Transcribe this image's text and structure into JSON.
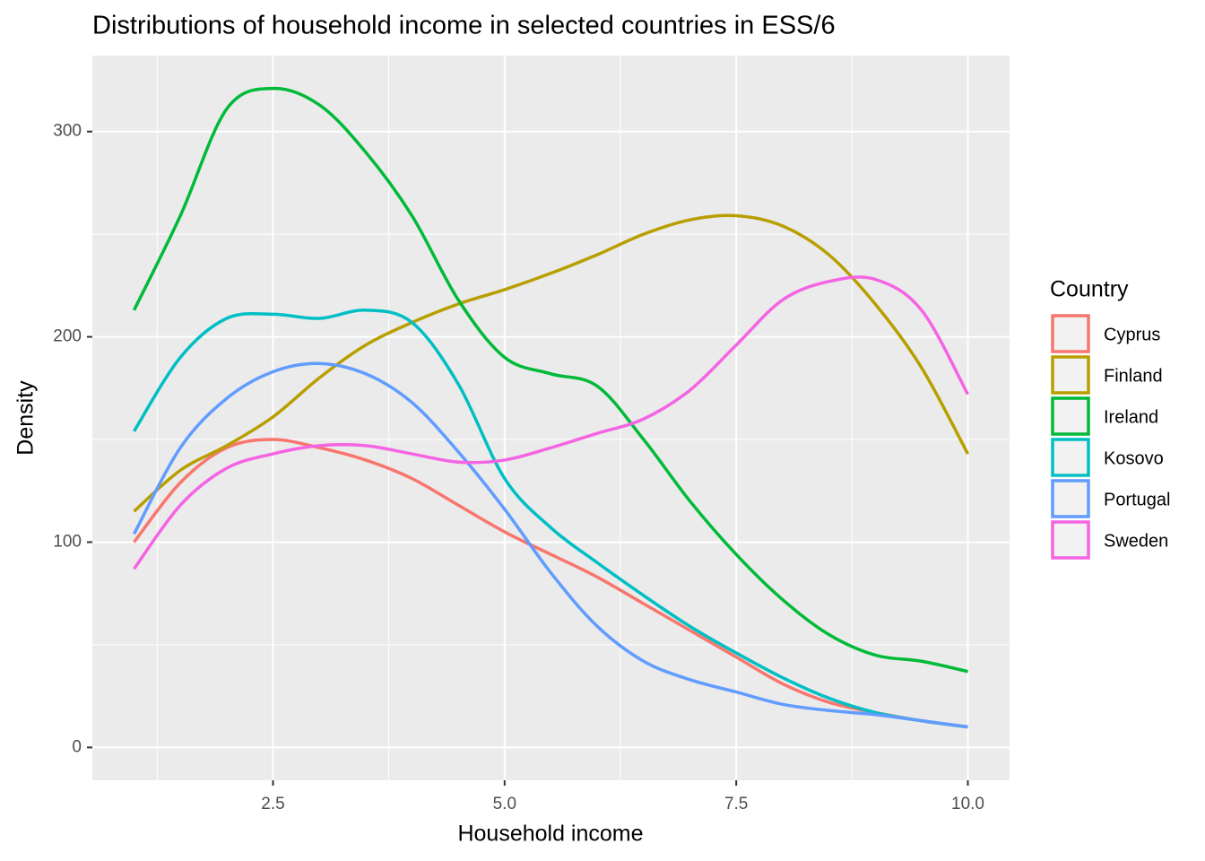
{
  "chart_data": {
    "type": "line",
    "title": "Distributions of household income in selected countries in ESS/6",
    "x_label": "Household income",
    "y_label": "Density",
    "legend_title": "Country",
    "legend_position": "right",
    "grid": true,
    "xlim": [
      0.55,
      10.45
    ],
    "ylim": [
      -16,
      337
    ],
    "xticks": [
      {
        "value": 2.5,
        "label": "2.5"
      },
      {
        "value": 5,
        "label": "5.0"
      },
      {
        "value": 7.5,
        "label": "7.5"
      },
      {
        "value": 10,
        "label": "10.0"
      }
    ],
    "yticks": [
      0,
      100,
      200,
      300
    ],
    "x": [
      1,
      1.5,
      2,
      2.5,
      3,
      3.5,
      4,
      4.5,
      5,
      5.5,
      6,
      6.5,
      7,
      7.5,
      8,
      8.5,
      9,
      9.5,
      10
    ],
    "series": [
      {
        "name": "Cyprus",
        "color": "#F8766D",
        "values": [
          100,
          129,
          146,
          150,
          146,
          140,
          131,
          118,
          105,
          94,
          83,
          70,
          57,
          44,
          31,
          22,
          17,
          13,
          10
        ]
      },
      {
        "name": "Finland",
        "color": "#B79F00",
        "values": [
          115,
          135,
          147,
          161,
          180,
          196,
          207,
          216,
          223,
          231,
          240,
          250,
          257,
          259,
          254,
          240,
          216,
          185,
          143
        ]
      },
      {
        "name": "Ireland",
        "color": "#00BA38",
        "values": [
          213,
          259,
          311,
          321,
          313,
          290,
          259,
          218,
          190,
          182,
          176,
          150,
          120,
          94,
          72,
          55,
          45,
          42,
          37
        ]
      },
      {
        "name": "Kosovo",
        "color": "#00BFC4",
        "values": [
          154,
          190,
          209,
          211,
          209,
          213,
          207,
          177,
          131,
          107,
          90,
          74,
          59,
          46,
          34,
          24,
          17,
          13,
          10
        ]
      },
      {
        "name": "Portugal",
        "color": "#619CFF",
        "values": [
          104,
          146,
          170,
          183,
          187,
          182,
          168,
          144,
          116,
          85,
          59,
          42,
          33,
          27,
          21,
          18,
          16,
          13,
          10
        ]
      },
      {
        "name": "Sweden",
        "color": "#F564E3",
        "values": [
          87,
          118,
          136,
          143,
          147,
          147,
          143,
          139,
          140,
          146,
          153,
          160,
          174,
          196,
          218,
          227,
          228,
          213,
          172
        ]
      }
    ]
  }
}
